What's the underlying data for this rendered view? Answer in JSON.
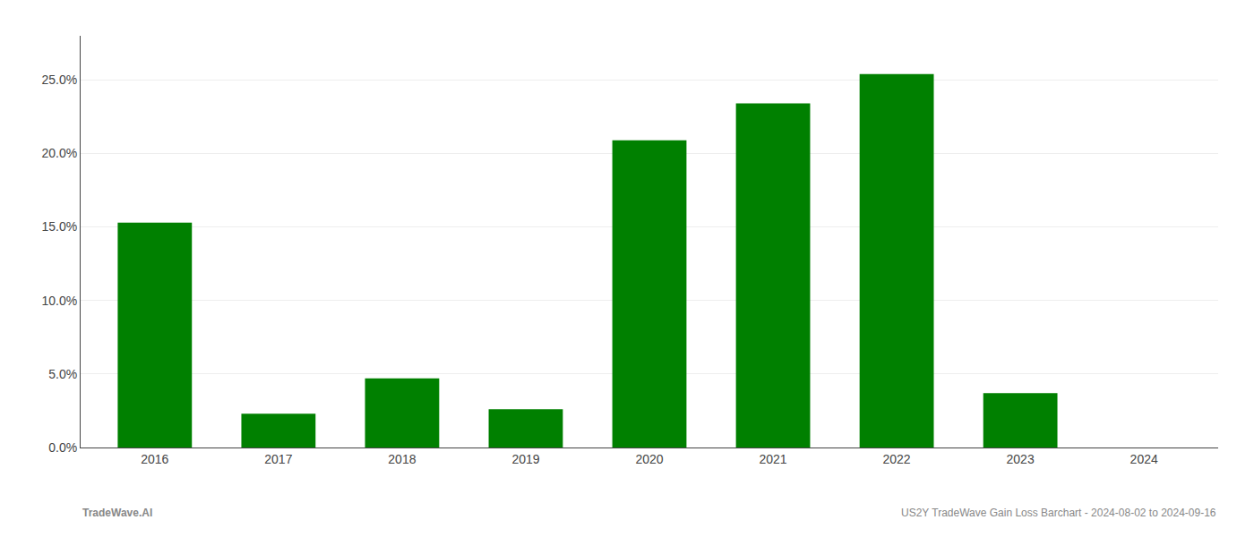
{
  "chart_data": {
    "type": "bar",
    "categories": [
      "2016",
      "2017",
      "2018",
      "2019",
      "2020",
      "2021",
      "2022",
      "2023",
      "2024"
    ],
    "values": [
      0.153,
      0.023,
      0.047,
      0.026,
      0.209,
      0.234,
      0.254,
      0.037,
      0.0
    ],
    "color": "#008000",
    "ylim": [
      0,
      0.28
    ],
    "yticks": [
      {
        "value": 0.0,
        "label": "0.0%"
      },
      {
        "value": 0.05,
        "label": "5.0%"
      },
      {
        "value": 0.1,
        "label": "10.0%"
      },
      {
        "value": 0.15,
        "label": "15.0%"
      },
      {
        "value": 0.2,
        "label": "20.0%"
      },
      {
        "value": 0.25,
        "label": "25.0%"
      }
    ],
    "grid": true,
    "annotations": [
      "TradeWave.AI",
      "US2Y TradeWave Gain Loss Barchart - 2024-08-02 to 2024-09-16"
    ]
  }
}
